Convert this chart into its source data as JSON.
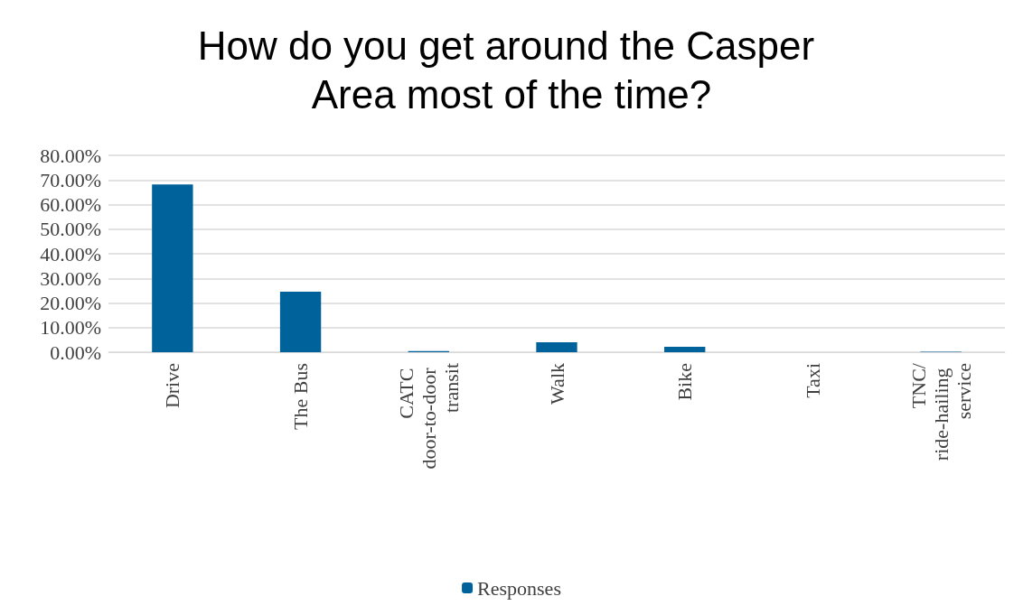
{
  "chart_data": {
    "type": "bar",
    "title": "How do you get around the Casper Area most of the time?",
    "categories": [
      "Drive",
      "The Bus",
      "CATC door-to-door transit",
      "Walk",
      "Bike",
      "Taxi",
      "TNC/ride-hailing service"
    ],
    "series": [
      {
        "name": "Responses",
        "color": "#00629b",
        "values": [
          68.2,
          24.6,
          0.5,
          4.0,
          2.2,
          0,
          0.2
        ]
      }
    ],
    "ylim": [
      0,
      80
    ],
    "yticks": [
      {
        "value": 0,
        "label": "0.00%"
      },
      {
        "value": 10,
        "label": "10.00%"
      },
      {
        "value": 20,
        "label": "20.00%"
      },
      {
        "value": 30,
        "label": "30.00%"
      },
      {
        "value": 40,
        "label": "40.00%"
      },
      {
        "value": 50,
        "label": "50.00%"
      },
      {
        "value": 60,
        "label": "60.00%"
      },
      {
        "value": 70,
        "label": "70.00%"
      },
      {
        "value": 80,
        "label": "80.00%"
      }
    ],
    "grid": "y",
    "legend": "bottom"
  }
}
